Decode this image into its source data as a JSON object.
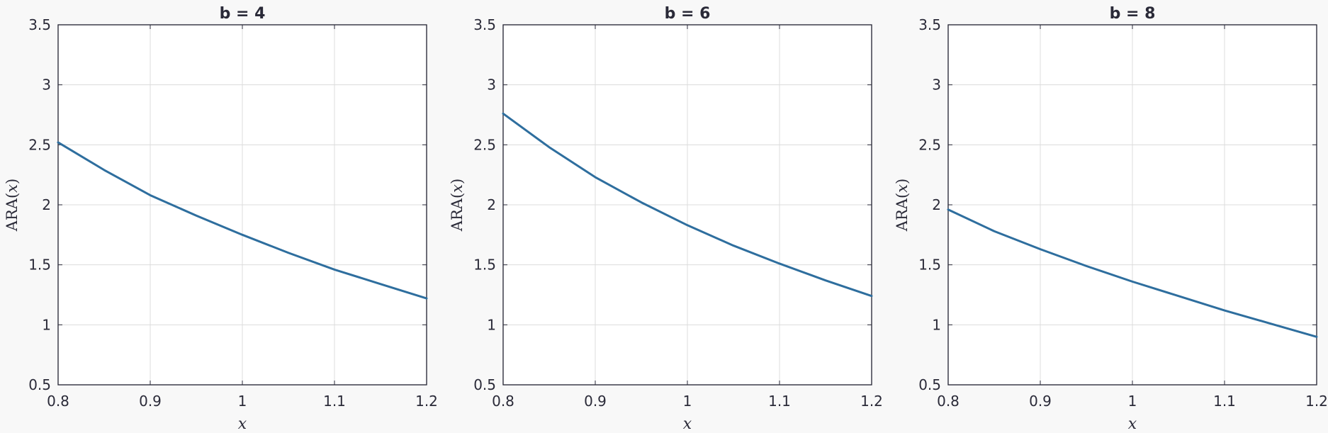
{
  "chart_data": [
    {
      "type": "line",
      "title": "b = 4",
      "xlabel": "x",
      "ylabel": {
        "prefix": "ARA(",
        "var": "x",
        "suffix": ")"
      },
      "xlim": [
        0.8,
        1.2
      ],
      "ylim": [
        0.5,
        3.5
      ],
      "xticks": [
        0.8,
        0.9,
        1,
        1.1,
        1.2
      ],
      "xtick_labels": [
        "0.8",
        "0.9",
        "1",
        "1.1",
        "1.2"
      ],
      "yticks": [
        0.5,
        1,
        1.5,
        2,
        2.5,
        3,
        3.5
      ],
      "ytick_labels": [
        "0.5",
        "1",
        "1.5",
        "2",
        "2.5",
        "3",
        "3.5"
      ],
      "grid": true,
      "color": "#2e6e9e",
      "series": [
        {
          "x": [
            0.8,
            0.85,
            0.9,
            0.95,
            1.0,
            1.05,
            1.1,
            1.15,
            1.2
          ],
          "y": [
            2.52,
            2.29,
            2.08,
            1.91,
            1.75,
            1.6,
            1.46,
            1.34,
            1.22
          ]
        }
      ]
    },
    {
      "type": "line",
      "title": "b = 6",
      "xlabel": "x",
      "ylabel": {
        "prefix": "ARA(",
        "var": "x",
        "suffix": ")"
      },
      "xlim": [
        0.8,
        1.2
      ],
      "ylim": [
        0.5,
        3.5
      ],
      "xticks": [
        0.8,
        0.9,
        1,
        1.1,
        1.2
      ],
      "xtick_labels": [
        "0.8",
        "0.9",
        "1",
        "1.1",
        "1.2"
      ],
      "yticks": [
        0.5,
        1,
        1.5,
        2,
        2.5,
        3,
        3.5
      ],
      "ytick_labels": [
        "0.5",
        "1",
        "1.5",
        "2",
        "2.5",
        "3",
        "3.5"
      ],
      "grid": true,
      "color": "#2e6e9e",
      "series": [
        {
          "x": [
            0.8,
            0.85,
            0.9,
            0.95,
            1.0,
            1.05,
            1.1,
            1.15,
            1.2
          ],
          "y": [
            2.76,
            2.48,
            2.23,
            2.02,
            1.83,
            1.66,
            1.51,
            1.37,
            1.24
          ]
        }
      ]
    },
    {
      "type": "line",
      "title": "b = 8",
      "xlabel": "x",
      "ylabel": {
        "prefix": "ARA(",
        "var": "x",
        "suffix": ")"
      },
      "xlim": [
        0.8,
        1.2
      ],
      "ylim": [
        0.5,
        3.5
      ],
      "xticks": [
        0.8,
        0.9,
        1,
        1.1,
        1.2
      ],
      "xtick_labels": [
        "0.8",
        "0.9",
        "1",
        "1.1",
        "1.2"
      ],
      "yticks": [
        0.5,
        1,
        1.5,
        2,
        2.5,
        3,
        3.5
      ],
      "ytick_labels": [
        "0.5",
        "1",
        "1.5",
        "2",
        "2.5",
        "3",
        "3.5"
      ],
      "grid": true,
      "color": "#2e6e9e",
      "series": [
        {
          "x": [
            0.8,
            0.85,
            0.9,
            0.95,
            1.0,
            1.05,
            1.1,
            1.15,
            1.2
          ],
          "y": [
            1.96,
            1.78,
            1.63,
            1.49,
            1.36,
            1.24,
            1.12,
            1.01,
            0.9
          ]
        }
      ]
    }
  ]
}
